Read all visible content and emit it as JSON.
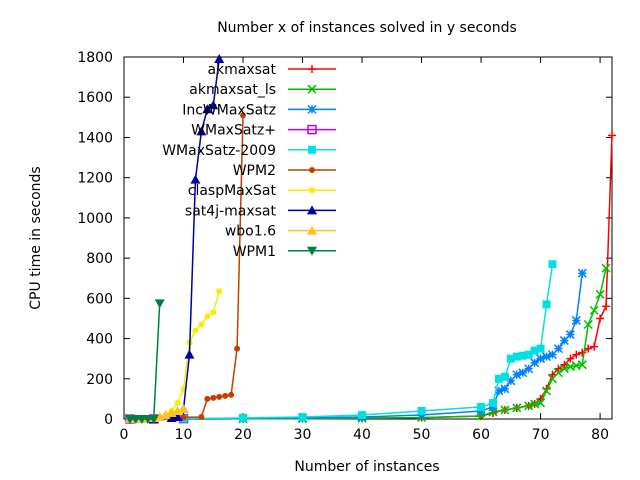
{
  "chart_data": {
    "type": "line",
    "title": "Number x of instances solved in y seconds",
    "xlabel": "Number of instances",
    "ylabel": "CPU time in seconds",
    "xlim": [
      0,
      82
    ],
    "ylim": [
      0,
      1800
    ],
    "xticks": [
      0,
      10,
      20,
      30,
      40,
      50,
      60,
      70,
      80
    ],
    "yticks": [
      0,
      200,
      400,
      600,
      800,
      1000,
      1200,
      1400,
      1600,
      1800
    ],
    "grid": false,
    "legend_position": "top-right",
    "series": [
      {
        "name": "akmaxsat",
        "color": "#ff0000",
        "marker": "plus",
        "x": [
          1,
          10,
          20,
          30,
          40,
          50,
          60,
          62,
          64,
          66,
          68,
          69,
          70,
          71,
          72,
          73,
          74,
          75,
          76,
          77,
          78,
          79,
          80,
          81,
          82
        ],
        "y": [
          0,
          0,
          1,
          2,
          4,
          7,
          15,
          30,
          45,
          55,
          65,
          75,
          100,
          150,
          220,
          250,
          270,
          300,
          320,
          330,
          350,
          360,
          500,
          560,
          1410
        ]
      },
      {
        "name": "akmaxsat_ls",
        "color": "#00c000",
        "marker": "x",
        "x": [
          1,
          10,
          20,
          30,
          40,
          50,
          60,
          62,
          64,
          66,
          68,
          69,
          70,
          71,
          72,
          73,
          74,
          75,
          76,
          77,
          78,
          79,
          80,
          81
        ],
        "y": [
          0,
          0,
          1,
          2,
          4,
          7,
          15,
          35,
          45,
          55,
          65,
          75,
          80,
          140,
          200,
          230,
          250,
          260,
          265,
          270,
          470,
          540,
          620,
          750
        ]
      },
      {
        "name": "IncWMaxSatz",
        "color": "#0080ff",
        "marker": "star",
        "x": [
          1,
          10,
          20,
          30,
          40,
          50,
          60,
          62,
          63,
          64,
          65,
          66,
          67,
          68,
          69,
          70,
          71,
          72,
          73,
          74,
          75,
          76,
          77
        ],
        "y": [
          0,
          0,
          2,
          5,
          10,
          20,
          40,
          60,
          140,
          150,
          190,
          220,
          230,
          250,
          280,
          300,
          310,
          320,
          350,
          390,
          420,
          490,
          725
        ]
      },
      {
        "name": "WMaxSatz+",
        "color": "#c000ff",
        "marker": "square",
        "x": [
          1,
          5,
          10
        ],
        "y": [
          0,
          0,
          2
        ]
      },
      {
        "name": "WMaxSatz-2009",
        "color": "#00e0e0",
        "marker": "filled-square",
        "x": [
          1,
          10,
          20,
          30,
          40,
          50,
          60,
          62,
          63,
          64,
          65,
          66,
          67,
          68,
          69,
          70,
          71,
          72
        ],
        "y": [
          1,
          2,
          5,
          10,
          20,
          40,
          60,
          80,
          200,
          210,
          300,
          310,
          315,
          320,
          340,
          350,
          570,
          770
        ]
      },
      {
        "name": "WPM2",
        "color": "#c04000",
        "marker": "filled-circle",
        "x": [
          1,
          5,
          10,
          13,
          14,
          15,
          16,
          17,
          18,
          19,
          20
        ],
        "y": [
          0,
          2,
          8,
          10,
          100,
          105,
          110,
          115,
          120,
          350,
          1510
        ]
      },
      {
        "name": "claspMaxSat",
        "color": "#f0f000",
        "marker": "filled-circle",
        "x": [
          1,
          5,
          6,
          7,
          8,
          9,
          10,
          11,
          12,
          13,
          14,
          15,
          16
        ],
        "y": [
          0,
          5,
          10,
          20,
          40,
          80,
          150,
          380,
          440,
          470,
          510,
          530,
          635
        ]
      },
      {
        "name": "sat4j-maxsat",
        "color": "#0000a0",
        "marker": "triangle",
        "x": [
          1,
          5,
          8,
          9,
          10,
          11,
          12,
          13,
          14,
          15,
          16
        ],
        "y": [
          0,
          0,
          5,
          10,
          50,
          320,
          1190,
          1430,
          1540,
          1560,
          1790
        ]
      },
      {
        "name": "wbo1.6",
        "color": "#ffc020",
        "marker": "triangle",
        "x": [
          1,
          3,
          5,
          6,
          7,
          8,
          9,
          10
        ],
        "y": [
          0,
          0,
          5,
          10,
          20,
          30,
          40,
          50
        ]
      },
      {
        "name": "WPM1",
        "color": "#008040",
        "marker": "inverted-triangle",
        "x": [
          1,
          2,
          3,
          4,
          5,
          6
        ],
        "y": [
          0,
          0,
          0,
          0,
          0,
          575
        ]
      }
    ]
  }
}
